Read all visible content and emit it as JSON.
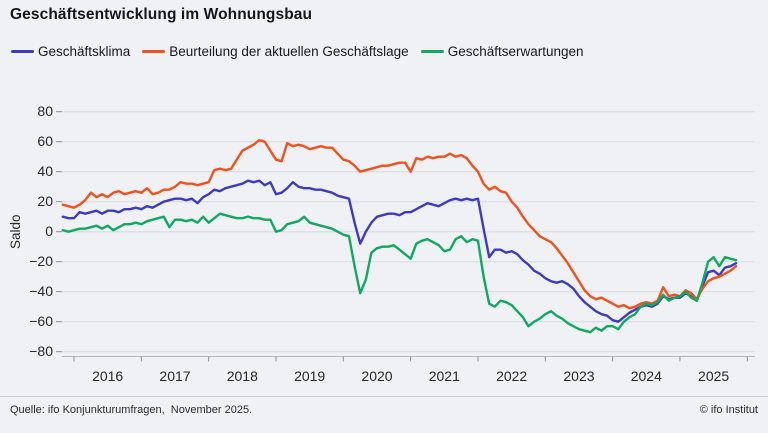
{
  "title": "Geschäftsentwicklung im Wohnungsbau",
  "legend": {
    "items": [
      {
        "label": "Geschäftsklima",
        "color": "#3c3cc3"
      },
      {
        "label": "Beurteilung der aktuellen Geschäftslage",
        "color": "#f1511b"
      },
      {
        "label": "Geschäftserwartungen",
        "color": "#0fa95f"
      }
    ]
  },
  "footer": {
    "source": "Quelle: ifo Konjunkturumfragen,  November 2025.",
    "copyright": "© ifo Institut"
  },
  "colors": {
    "background": "#f0f1f5",
    "gridline": "#d7d8df",
    "axis": "#b4b5c0",
    "tick": "#8b8b99",
    "text": "#26262c"
  },
  "chart_data": {
    "type": "line",
    "title": "Geschäftsentwicklung im Wohnungsbau",
    "xlabel": "",
    "ylabel": "Saldo",
    "ylim": [
      -80,
      80
    ],
    "ytick_step": 20,
    "y_tick_labels": [
      "80",
      "60",
      "40",
      "20",
      "0",
      "−20",
      "−40",
      "−60",
      "−80"
    ],
    "grid": true,
    "legend_position": "top",
    "x_unit": "month",
    "x_start": "2015-11",
    "x_end": "2025-11",
    "x_tick_years": [
      "2016",
      "2017",
      "2018",
      "2019",
      "2020",
      "2021",
      "2022",
      "2023",
      "2024",
      "2025"
    ],
    "series": [
      {
        "id": "geschaeftsklima",
        "name": "Geschäftsklima",
        "color": "#3c3cc3",
        "values": [
          10,
          9,
          9,
          13,
          12,
          13,
          14,
          12,
          14,
          14,
          13,
          15,
          15,
          16,
          15,
          17,
          16,
          18,
          20,
          21,
          22,
          22,
          21,
          22,
          19,
          23,
          25,
          28,
          27,
          29,
          30,
          31,
          32,
          34,
          33,
          34,
          31,
          33,
          25,
          26,
          29,
          33,
          30,
          29,
          29,
          28,
          28,
          27,
          26,
          24,
          23,
          22,
          6,
          -8,
          0,
          6,
          10,
          11,
          12,
          12,
          11,
          13,
          13,
          15,
          17,
          19,
          18,
          17,
          19,
          21,
          22,
          21,
          22,
          21,
          22,
          2,
          -17,
          -12,
          -12,
          -14,
          -13,
          -15,
          -19,
          -22,
          -26,
          -28,
          -31,
          -33,
          -34,
          -33,
          -35,
          -38,
          -43,
          -47,
          -50,
          -53,
          -55,
          -56,
          -59,
          -60,
          -57,
          -54,
          -52,
          -50,
          -49,
          -50,
          -48,
          -43,
          -45,
          -44,
          -44,
          -41,
          -43,
          -46,
          -36,
          -27,
          -26,
          -29,
          -24,
          -23,
          -21
        ]
      },
      {
        "id": "geschaeftslage",
        "name": "Beurteilung der aktuellen Geschäftslage",
        "color": "#f1511b",
        "values": [
          18,
          17,
          16,
          18,
          21,
          26,
          23,
          25,
          23,
          26,
          27,
          25,
          26,
          27,
          26,
          29,
          25,
          26,
          28,
          28,
          30,
          33,
          32,
          32,
          31,
          32,
          33,
          41,
          42,
          41,
          42,
          48,
          54,
          56,
          58,
          61,
          60,
          54,
          48,
          47,
          59,
          57,
          58,
          57,
          55,
          56,
          57,
          56,
          56,
          52,
          48,
          47,
          44,
          40,
          41,
          42,
          43,
          44,
          44,
          45,
          46,
          46,
          40,
          49,
          48,
          50,
          49,
          50,
          50,
          52,
          50,
          51,
          49,
          44,
          40,
          32,
          28,
          30,
          27,
          26,
          20,
          16,
          10,
          5,
          1,
          -3,
          -5,
          -7,
          -11,
          -16,
          -21,
          -27,
          -33,
          -39,
          -43,
          -45,
          -44,
          -46,
          -48,
          -50,
          -49,
          -51,
          -50,
          -48,
          -47,
          -48,
          -46,
          -37,
          -43,
          -42,
          -43,
          -39,
          -41,
          -45,
          -38,
          -33,
          -31,
          -30,
          -28,
          -26,
          -23
        ]
      },
      {
        "id": "geschaeftserwartungen",
        "name": "Geschäftserwartungen",
        "color": "#0fa95f",
        "values": [
          1,
          0,
          1,
          2,
          2,
          3,
          4,
          2,
          4,
          1,
          3,
          5,
          5,
          6,
          5,
          7,
          8,
          9,
          10,
          3,
          8,
          8,
          7,
          8,
          6,
          10,
          6,
          9,
          12,
          11,
          10,
          9,
          9,
          10,
          9,
          9,
          8,
          8,
          0,
          1,
          5,
          6,
          7,
          10,
          6,
          5,
          4,
          3,
          2,
          0,
          -2,
          -3,
          -23,
          -41,
          -32,
          -14,
          -11,
          -10,
          -10,
          -9,
          -12,
          -15,
          -18,
          -8,
          -6,
          -5,
          -7,
          -9,
          -13,
          -12,
          -5,
          -3,
          -7,
          -5,
          -6,
          -30,
          -48,
          -50,
          -46,
          -47,
          -49,
          -53,
          -57,
          -63,
          -60,
          -58,
          -55,
          -53,
          -56,
          -58,
          -61,
          -63,
          -65,
          -66,
          -67,
          -64,
          -66,
          -63,
          -63,
          -65,
          -60,
          -57,
          -55,
          -50,
          -48,
          -49,
          -47,
          -42,
          -46,
          -44,
          -43,
          -40,
          -44,
          -46,
          -34,
          -20,
          -17,
          -23,
          -17,
          -18,
          -19
        ]
      }
    ]
  }
}
